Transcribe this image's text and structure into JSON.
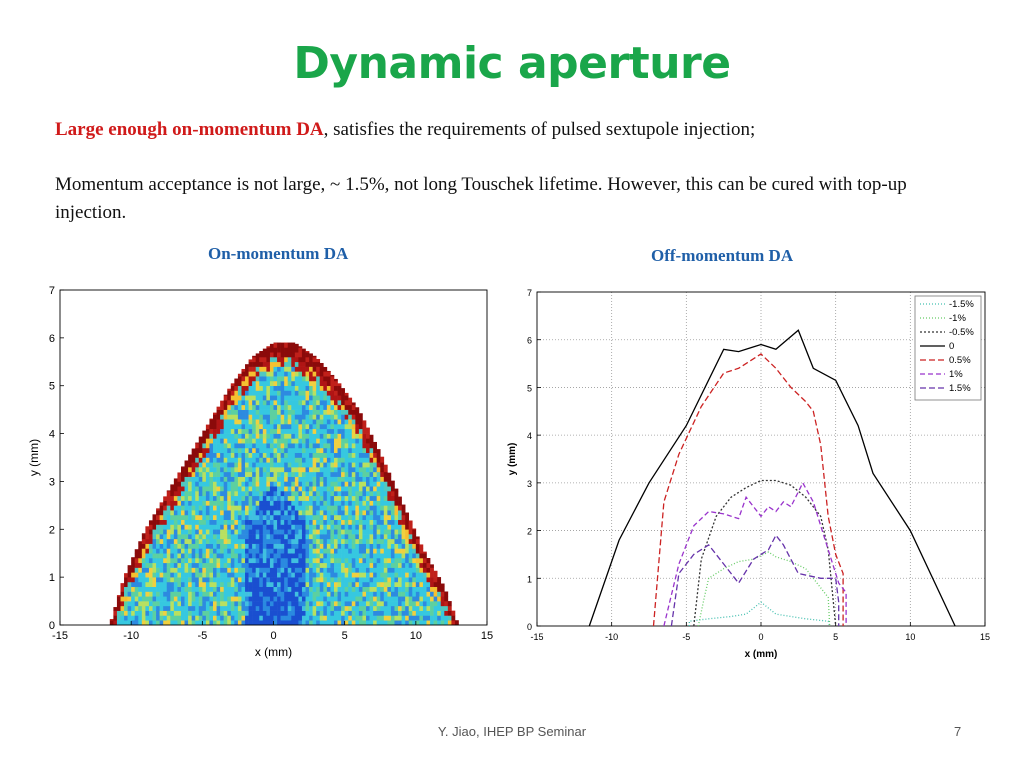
{
  "slide": {
    "title": "Dynamic aperture",
    "para1_highlight": "Large enough on-momentum DA",
    "para1_rest": ", satisfies the requirements of pulsed sextupole injection;",
    "para2": "Momentum acceptance is not large, ~ 1.5%, not long Touschek lifetime. However, this can be cured with top-up injection.",
    "footer": "Y. Jiao, IHEP BP Seminar",
    "page_number": "7"
  },
  "chart_data": [
    {
      "type": "heatmap",
      "caption": "On-momentum DA",
      "xlabel": "x (mm)",
      "ylabel": "y (mm)",
      "xlim": [
        -15,
        15
      ],
      "ylim": [
        0,
        7
      ],
      "xticks": [
        -15,
        -10,
        -5,
        0,
        5,
        10,
        15
      ],
      "yticks": [
        0,
        1,
        2,
        3,
        4,
        5,
        6,
        7
      ],
      "grid": false,
      "boundary": {
        "x": [
          -11.5,
          -10.5,
          -9,
          -7,
          -5,
          -3,
          -1.5,
          0,
          1.5,
          3,
          4.5,
          6,
          7.5,
          9,
          10.5,
          12,
          13
        ],
        "y": [
          0,
          1.0,
          2.0,
          3.0,
          4.0,
          5.0,
          5.6,
          5.9,
          5.9,
          5.6,
          5.1,
          4.5,
          3.6,
          2.6,
          1.6,
          0.8,
          0
        ]
      }
    },
    {
      "type": "line",
      "caption": "Off-momentum DA",
      "xlabel": "x (mm)",
      "ylabel": "y (mm)",
      "xlim": [
        -15,
        15
      ],
      "ylim": [
        0,
        7
      ],
      "xticks": [
        -15,
        -10,
        -5,
        0,
        5,
        10,
        15
      ],
      "yticks": [
        0,
        1,
        2,
        3,
        4,
        5,
        6,
        7
      ],
      "grid": true,
      "legend": "top-right",
      "series": [
        {
          "name": "-1.5%",
          "color": "#44c0b0",
          "dash": "1,2",
          "x": [
            -4.8,
            -4.8,
            -3.5,
            -2,
            -1,
            0,
            1,
            2,
            3,
            4.5,
            4.6
          ],
          "y": [
            0,
            0.1,
            0.15,
            0.2,
            0.25,
            0.5,
            0.25,
            0.2,
            0.15,
            0.1,
            0
          ]
        },
        {
          "name": "-1%",
          "color": "#66cc66",
          "dash": "1,2",
          "x": [
            -4.2,
            -3.8,
            -3.5,
            -2.5,
            -1.5,
            -0.5,
            0.5,
            1,
            2,
            3,
            4.5,
            4.6
          ],
          "y": [
            0,
            0.6,
            1.0,
            1.2,
            1.35,
            1.4,
            1.55,
            1.45,
            1.35,
            1.2,
            0.6,
            0
          ]
        },
        {
          "name": "-0.5%",
          "color": "#333333",
          "dash": "2,2",
          "x": [
            -4.5,
            -4,
            -3,
            -2,
            -1,
            0,
            1,
            2,
            3,
            4,
            4.5,
            5
          ],
          "y": [
            0,
            1.4,
            2.3,
            2.7,
            2.9,
            3.05,
            3.05,
            2.95,
            2.7,
            2.3,
            1.6,
            0
          ]
        },
        {
          "name": "0",
          "color": "#000000",
          "dash": "",
          "x": [
            -11.5,
            -9.5,
            -7.5,
            -5,
            -2.5,
            -1.5,
            -0.5,
            0,
            1,
            2.5,
            3.5,
            5,
            6.5,
            7.5,
            10,
            13
          ],
          "y": [
            0,
            1.8,
            3.0,
            4.2,
            5.8,
            5.75,
            5.85,
            5.9,
            5.8,
            6.2,
            5.4,
            5.15,
            4.2,
            3.2,
            2.0,
            0
          ]
        },
        {
          "name": "0.5%",
          "color": "#cc2222",
          "dash": "6,3",
          "x": [
            -7.2,
            -6.5,
            -5.5,
            -4,
            -2.5,
            -1.5,
            0,
            1,
            2,
            3,
            3.5,
            4,
            4.5,
            5,
            5.5,
            5.5
          ],
          "y": [
            0,
            2.6,
            3.6,
            4.6,
            5.3,
            5.4,
            5.7,
            5.4,
            5.0,
            4.7,
            4.5,
            3.8,
            2.3,
            1.5,
            1.1,
            0
          ]
        },
        {
          "name": "1%",
          "color": "#9933cc",
          "dash": "5,3",
          "x": [
            -6.5,
            -5.5,
            -4.5,
            -3.5,
            -2.5,
            -1.5,
            -1,
            0,
            0.5,
            1,
            1.5,
            2,
            2.8,
            3.5,
            4.5,
            5.2,
            5.7,
            5.7
          ],
          "y": [
            0,
            1.3,
            2.1,
            2.4,
            2.35,
            2.25,
            2.7,
            2.3,
            2.5,
            2.4,
            2.6,
            2.5,
            3.0,
            2.6,
            1.6,
            0.9,
            0.7,
            0
          ]
        },
        {
          "name": "1.5%",
          "color": "#6633aa",
          "dash": "6,3",
          "x": [
            -6,
            -5.5,
            -4.5,
            -3.5,
            -2,
            -1.5,
            -0.5,
            0.5,
            1,
            1.5,
            2.5,
            4,
            5,
            5.2,
            5.2
          ],
          "y": [
            0,
            1.1,
            1.5,
            1.7,
            1.1,
            0.9,
            1.4,
            1.6,
            1.9,
            1.7,
            1.1,
            1.0,
            1.0,
            0.5,
            0
          ]
        }
      ]
    }
  ]
}
